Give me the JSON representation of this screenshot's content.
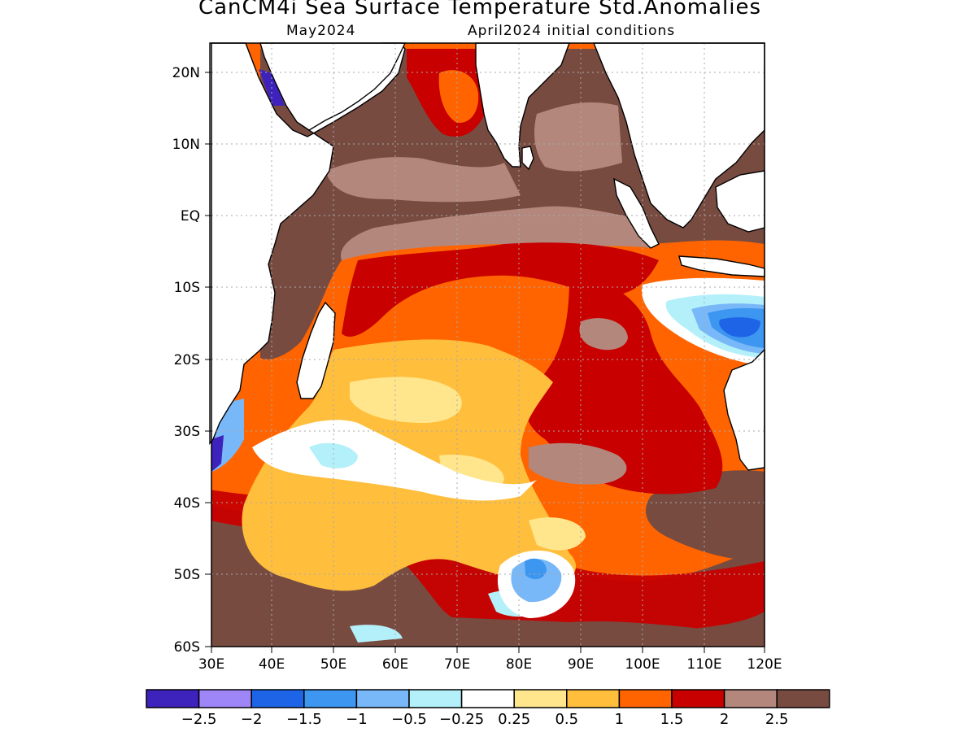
{
  "header": {
    "title": "CanCM4i Sea Surface Temperature Std.Anomalies",
    "valid_month": "May2024",
    "init": "April2024 initial conditions"
  },
  "axes": {
    "lat_labels": [
      "20N",
      "10N",
      "EQ",
      "10S",
      "20S",
      "30S",
      "40S",
      "50S",
      "60S"
    ],
    "lon_labels": [
      "30E",
      "40E",
      "50E",
      "60E",
      "70E",
      "80E",
      "90E",
      "100E",
      "110E",
      "120E"
    ]
  },
  "map": {
    "lon_range": [
      30,
      120
    ],
    "lat_range": [
      -60,
      24
    ],
    "grid": true,
    "features": {
      "warm_core_central": "1 to 2",
      "cool_patch_south_of_java": "-1 to -2",
      "near_neutral_band_southwest": "-0.25 to 0.5"
    }
  },
  "colorbar": {
    "colors": [
      "#3e22bc",
      "#9e86f8",
      "#1e64e6",
      "#3d96f0",
      "#78b8f8",
      "#b4f0fa",
      "#ffffff",
      "#ffe68c",
      "#ffbe3c",
      "#ff6400",
      "#c80000",
      "#b4877d",
      "#784b41"
    ],
    "tick_labels": [
      "-2.5",
      "-2",
      "-1.5",
      "-1",
      "-0.5",
      "-0.25",
      "0.25",
      "0.5",
      "1",
      "1.5",
      "2",
      "2.5"
    ]
  }
}
